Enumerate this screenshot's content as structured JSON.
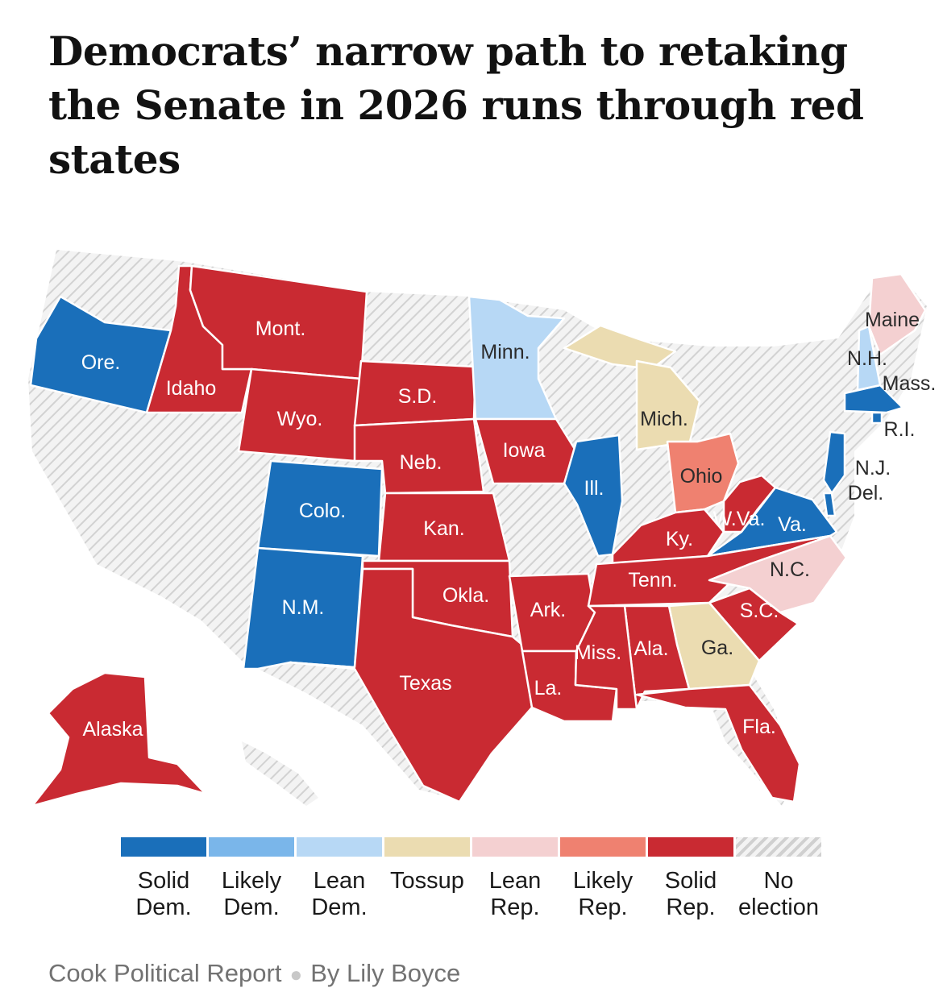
{
  "title": "Democrats’ narrow path to retaking the Senate in 2026 runs through red states",
  "colors": {
    "solid_dem": "#1a6fba",
    "likely_dem": "#7ab6ea",
    "lean_dem": "#b7d8f5",
    "tossup": "#ebdcb1",
    "lean_rep": "#f4d0d1",
    "likely_rep": "#ef8170",
    "solid_rep": "#c92a32",
    "no_election": "#e8e8e8"
  },
  "legend": [
    {
      "key": "solid_dem",
      "label": "Solid\nDem."
    },
    {
      "key": "likely_dem",
      "label": "Likely\nDem."
    },
    {
      "key": "lean_dem",
      "label": "Lean\nDem."
    },
    {
      "key": "tossup",
      "label": "Tossup"
    },
    {
      "key": "lean_rep",
      "label": "Lean\nRep."
    },
    {
      "key": "likely_rep",
      "label": "Likely\nRep."
    },
    {
      "key": "solid_rep",
      "label": "Solid\nRep."
    },
    {
      "key": "no_election",
      "label": "No\nelection"
    }
  ],
  "states": [
    {
      "name": "Ore.",
      "rating": "solid_dem"
    },
    {
      "name": "Idaho",
      "rating": "solid_rep"
    },
    {
      "name": "Mont.",
      "rating": "solid_rep"
    },
    {
      "name": "Wyo.",
      "rating": "solid_rep"
    },
    {
      "name": "Colo.",
      "rating": "solid_dem"
    },
    {
      "name": "N.M.",
      "rating": "solid_dem"
    },
    {
      "name": "S.D.",
      "rating": "solid_rep"
    },
    {
      "name": "Neb.",
      "rating": "solid_rep"
    },
    {
      "name": "Kan.",
      "rating": "solid_rep"
    },
    {
      "name": "Okla.",
      "rating": "solid_rep"
    },
    {
      "name": "Texas",
      "rating": "solid_rep"
    },
    {
      "name": "Minn.",
      "rating": "lean_dem"
    },
    {
      "name": "Iowa",
      "rating": "solid_rep"
    },
    {
      "name": "Ark.",
      "rating": "solid_rep"
    },
    {
      "name": "La.",
      "rating": "solid_rep"
    },
    {
      "name": "Ill.",
      "rating": "solid_dem"
    },
    {
      "name": "Mich.",
      "rating": "tossup"
    },
    {
      "name": "Ohio",
      "rating": "likely_rep"
    },
    {
      "name": "Ky.",
      "rating": "solid_rep"
    },
    {
      "name": "Tenn.",
      "rating": "solid_rep"
    },
    {
      "name": "Miss.",
      "rating": "solid_rep"
    },
    {
      "name": "Ala.",
      "rating": "solid_rep"
    },
    {
      "name": "Ga.",
      "rating": "tossup"
    },
    {
      "name": "Fla.",
      "rating": "solid_rep"
    },
    {
      "name": "S.C.",
      "rating": "solid_rep"
    },
    {
      "name": "N.C.",
      "rating": "lean_rep"
    },
    {
      "name": "Va.",
      "rating": "solid_dem"
    },
    {
      "name": "W.Va.",
      "rating": "solid_rep"
    },
    {
      "name": "Del.",
      "rating": "solid_dem"
    },
    {
      "name": "N.J.",
      "rating": "solid_dem"
    },
    {
      "name": "R.I.",
      "rating": "solid_dem"
    },
    {
      "name": "Mass.",
      "rating": "solid_dem"
    },
    {
      "name": "N.H.",
      "rating": "lean_dem"
    },
    {
      "name": "Maine",
      "rating": "lean_rep"
    },
    {
      "name": "Alaska",
      "rating": "solid_rep"
    }
  ],
  "source": "Cook Political Report",
  "byline": "By Lily Boyce"
}
